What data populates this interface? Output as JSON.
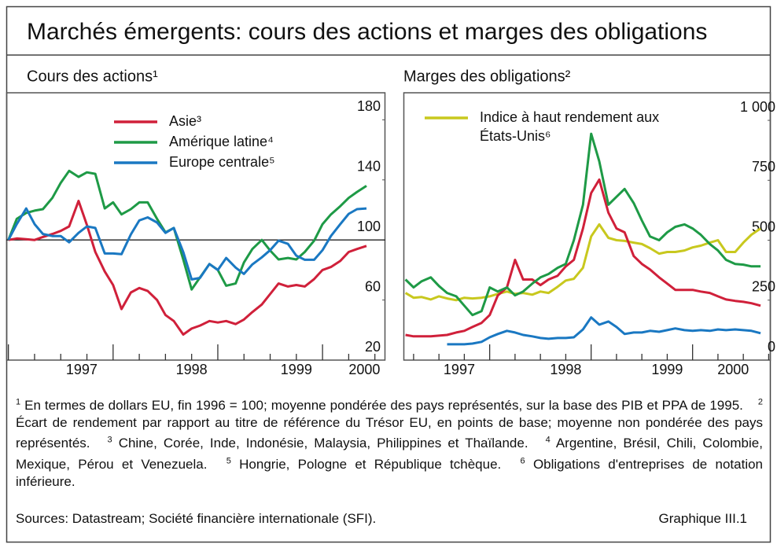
{
  "title": "Marchés émergents: cours des actions et marges des obligations",
  "chart_data": [
    {
      "type": "line",
      "subtitle": "Cours des actions¹",
      "legend_position": "top",
      "xlim": [
        1996.98,
        2000.6
      ],
      "ylim": [
        20,
        198
      ],
      "xticks": [
        {
          "value": 1997.7,
          "label": "1997"
        },
        {
          "value": 1998.75,
          "label": "1998"
        },
        {
          "value": 1999.75,
          "label": "1999"
        },
        {
          "value": 2000.4,
          "label": "2000"
        }
      ],
      "yticks": [
        20,
        60,
        100,
        140,
        180
      ],
      "reference_line": 100,
      "x": [
        1997.0,
        1997.08,
        1997.17,
        1997.25,
        1997.33,
        1997.42,
        1997.5,
        1997.58,
        1997.67,
        1997.75,
        1997.83,
        1997.92,
        1998.0,
        1998.08,
        1998.17,
        1998.25,
        1998.33,
        1998.42,
        1998.5,
        1998.58,
        1998.67,
        1998.75,
        1998.83,
        1998.92,
        1999.0,
        1999.08,
        1999.17,
        1999.25,
        1999.33,
        1999.42,
        1999.5,
        1999.58,
        1999.67,
        1999.75,
        1999.83,
        1999.92,
        2000.0,
        2000.08,
        2000.17,
        2000.25,
        2000.33,
        2000.42
      ],
      "series": [
        {
          "name": "Asie³",
          "color": "#d0203a",
          "values": [
            100,
            101,
            100.5,
            100,
            102,
            104,
            106,
            109,
            126,
            110,
            92,
            79,
            70,
            54,
            65,
            68,
            66,
            60,
            50,
            46,
            37,
            41,
            43,
            46,
            45,
            46,
            44,
            47,
            52,
            57,
            64,
            71,
            69,
            70,
            69,
            74,
            80,
            82,
            86,
            92,
            94,
            96
          ]
        },
        {
          "name": "Amérique latine⁴",
          "color": "#1e9a46",
          "values": [
            100,
            114,
            118,
            119.5,
            120.5,
            128,
            138,
            146,
            142,
            145,
            144,
            121,
            125,
            117,
            120.5,
            125,
            125,
            114,
            105,
            108,
            87,
            67,
            75,
            84,
            80,
            69.5,
            71,
            85,
            94,
            100,
            93,
            87,
            88,
            87,
            92,
            99.5,
            110.5,
            117,
            122.5,
            128,
            132,
            136
          ]
        },
        {
          "name": "Europe centrale⁵",
          "color": "#1a78c2",
          "values": [
            100,
            110.5,
            121,
            110.5,
            104,
            102.6,
            102.6,
            98.4,
            104.7,
            109,
            108,
            91,
            91,
            90.5,
            103.7,
            113,
            115,
            111.6,
            104.7,
            108,
            92,
            73.7,
            74.7,
            84,
            80,
            88,
            81.6,
            77.4,
            83.7,
            88.4,
            93.2,
            99.5,
            97.4,
            89.5,
            86.8,
            86.8,
            93.2,
            102.6,
            110.5,
            117.4,
            120.5,
            121
          ]
        }
      ]
    },
    {
      "type": "line",
      "subtitle": "Marges des obligations²",
      "legend_position": "top-left",
      "xlim": [
        1997.15,
        2000.77
      ],
      "ylim": [
        0,
        1115
      ],
      "xticks": [
        {
          "value": 1997.7,
          "label": "1997"
        },
        {
          "value": 1998.75,
          "label": "1998"
        },
        {
          "value": 1999.75,
          "label": "1999"
        },
        {
          "value": 2000.4,
          "label": "2000"
        }
      ],
      "yticks": [
        0,
        250,
        500,
        750,
        {
          "value": 1000,
          "label": "1 000"
        }
      ],
      "x": [
        1997.17,
        1997.25,
        1997.33,
        1997.42,
        1997.5,
        1997.58,
        1997.67,
        1997.75,
        1997.83,
        1997.92,
        1998.0,
        1998.08,
        1998.17,
        1998.25,
        1998.33,
        1998.42,
        1998.5,
        1998.58,
        1998.67,
        1998.75,
        1998.83,
        1998.92,
        1999.0,
        1999.08,
        1999.17,
        1999.25,
        1999.33,
        1999.42,
        1999.5,
        1999.58,
        1999.67,
        1999.75,
        1999.83,
        1999.92,
        2000.0,
        2000.08,
        2000.17,
        2000.25,
        2000.33,
        2000.42,
        2000.5,
        2000.58,
        2000.67
      ],
      "series": [
        {
          "name": "Indice à haut rendement aux États-Unis⁶",
          "color": "#c8c81e",
          "values": [
            280,
            260,
            263,
            253,
            266,
            257,
            250,
            260,
            257,
            260,
            266,
            276,
            286,
            276,
            280,
            273,
            286,
            280,
            306,
            332,
            339,
            385,
            516,
            566,
            510,
            500,
            497,
            490,
            484,
            467,
            444,
            451,
            451,
            457,
            470,
            477,
            490,
            500,
            451,
            451,
            490,
            523,
            549
          ]
        },
        {
          "color": "#d0203a",
          "values": [
            105,
            99,
            99,
            99,
            102,
            105,
            115,
            122,
            138,
            155,
            188,
            270,
            303,
            418,
            336,
            336,
            313,
            336,
            352,
            391,
            418,
            549,
            697,
            753,
            615,
            549,
            533,
            434,
            401,
            378,
            345,
            319,
            293,
            293,
            293,
            286,
            280,
            266,
            253,
            247,
            243,
            237,
            227
          ]
        },
        {
          "color": "#1e9a46",
          "values": [
            336,
            303,
            329,
            345,
            309,
            280,
            266,
            227,
            188,
            204,
            303,
            286,
            303,
            270,
            286,
            319,
            345,
            359,
            385,
            401,
            500,
            648,
            944,
            829,
            648,
            681,
            714,
            655,
            582,
            516,
            500,
            533,
            556,
            566,
            549,
            523,
            484,
            457,
            418,
            401,
            398,
            391,
            391
          ]
        },
        {
          "color": "#1a78c2",
          "values": [
            null,
            null,
            null,
            null,
            null,
            66,
            66,
            66,
            69,
            76,
            95,
            109,
            122,
            115,
            105,
            99,
            92,
            89,
            92,
            92,
            95,
            128,
            178,
            148,
            161,
            138,
            109,
            115,
            115,
            122,
            118,
            125,
            132,
            125,
            122,
            125,
            122,
            128,
            125,
            128,
            125,
            122,
            112
          ]
        }
      ]
    }
  ],
  "footnotes": [
    {
      "mark": "1",
      "text": "En termes de dollars EU, fin 1996 = 100; moyenne pondérée des pays représentés, sur la base des PIB et PPA de 1995."
    },
    {
      "mark": "2",
      "text": "Écart de rendement par rapport au titre de référence du Trésor EU, en points de base; moyenne non pondérée des pays représentés."
    },
    {
      "mark": "3",
      "text": "Chine, Corée, Inde, Indonésie, Malaysia, Philippines et Thaïlande."
    },
    {
      "mark": "4",
      "text": "Argentine, Brésil, Chili, Colombie, Mexique, Pérou et Venezuela."
    },
    {
      "mark": "5",
      "text": "Hongrie, Pologne et République tchèque."
    },
    {
      "mark": "6",
      "text": "Obligations d'entreprises de notation inférieure."
    }
  ],
  "sources": "Sources: Datastream; Société financière internationale (SFI).",
  "figure_label": "Graphique III.1"
}
